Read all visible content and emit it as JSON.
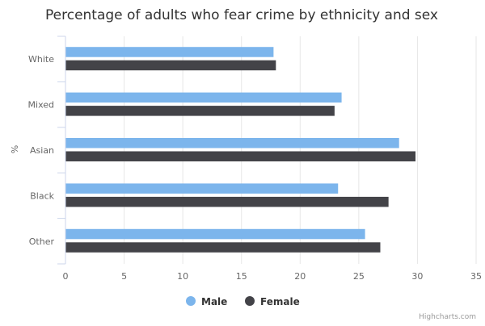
{
  "chart_data": {
    "type": "bar",
    "orientation": "horizontal",
    "title": "Percentage of adults who fear crime by ethnicity and sex",
    "ylabel": "%",
    "categories": [
      "White",
      "Mixed",
      "Asian",
      "Black",
      "Other"
    ],
    "series": [
      {
        "name": "Male",
        "color": "#7cb5ec",
        "values": [
          17.7,
          23.5,
          28.4,
          23.2,
          25.5
        ]
      },
      {
        "name": "Female",
        "color": "#434348",
        "values": [
          17.9,
          22.9,
          29.8,
          27.5,
          26.8
        ]
      }
    ],
    "value_axis": {
      "min": 0,
      "max": 35,
      "ticks": [
        "0",
        "5",
        "10",
        "15",
        "20",
        "25",
        "30",
        "35"
      ]
    },
    "grid": true,
    "legend_position": "bottom-center",
    "credit": "Highcharts.com"
  }
}
